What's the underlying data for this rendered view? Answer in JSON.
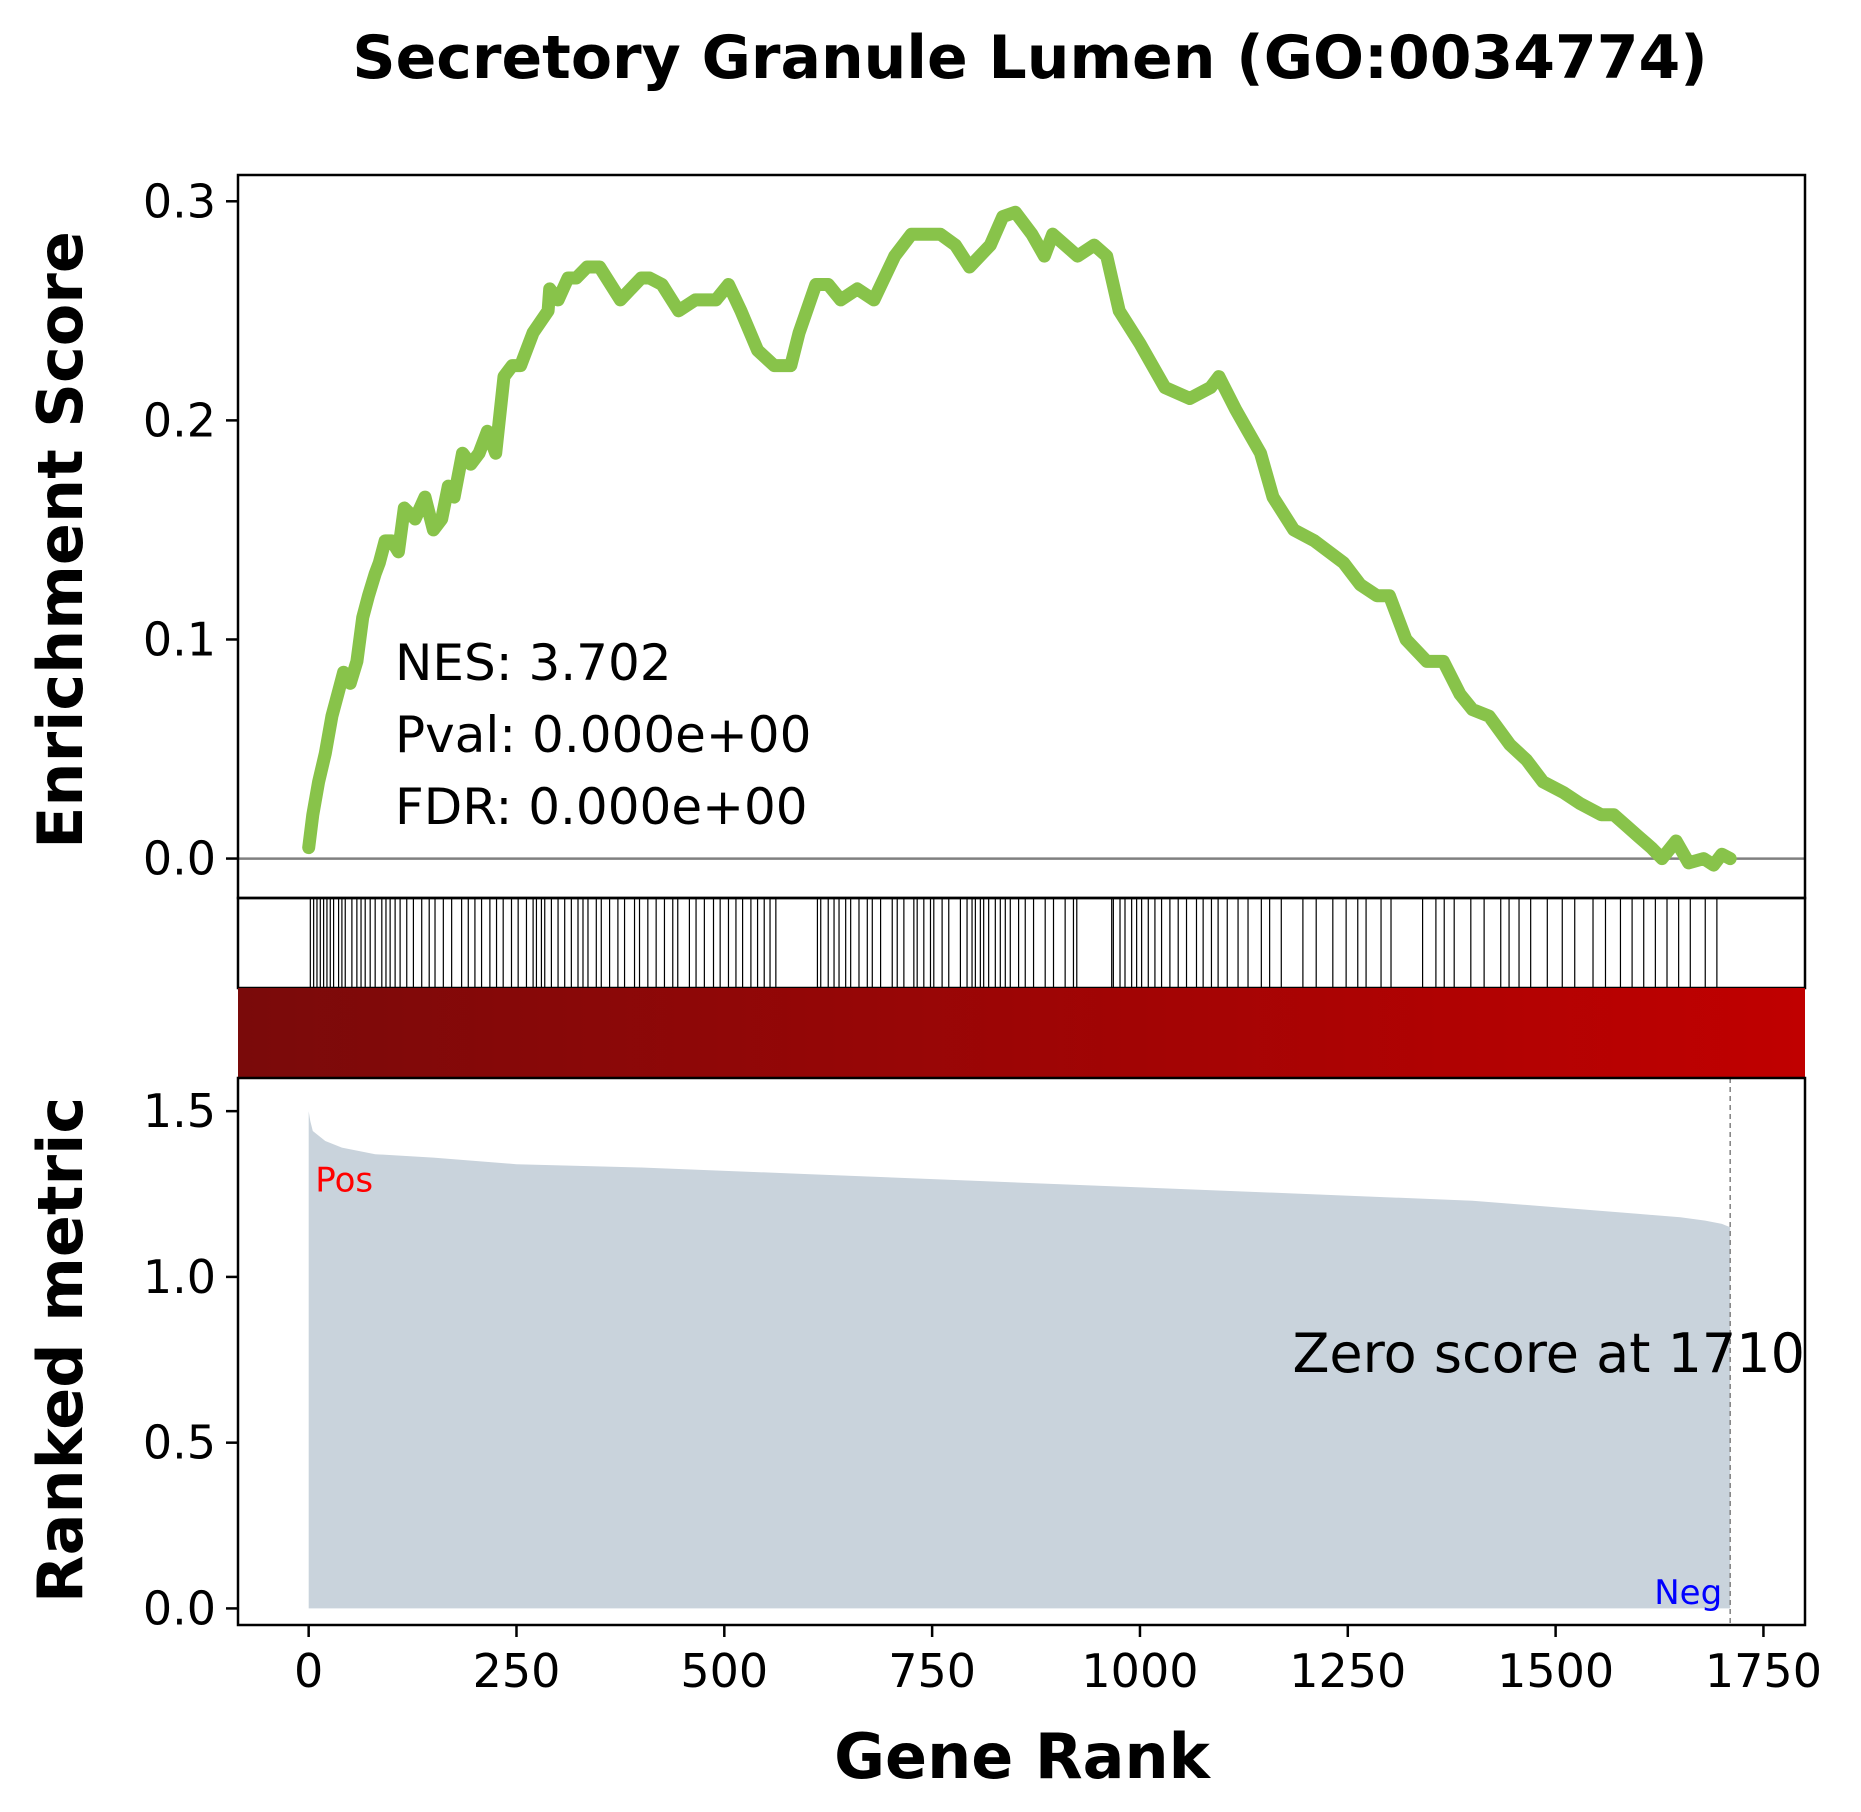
{
  "chart_data": {
    "type": "line",
    "title": "Secretory Granule Lumen (GO:0034774)",
    "xlabel": "Gene Rank",
    "xlim": [
      -85,
      1800
    ],
    "x_ticks": [
      {
        "value": 0,
        "label": "0"
      },
      {
        "value": 250,
        "label": "250"
      },
      {
        "value": 500,
        "label": "500"
      },
      {
        "value": 750,
        "label": "750"
      },
      {
        "value": 1000,
        "label": "1000"
      },
      {
        "value": 1250,
        "label": "1250"
      },
      {
        "value": 1500,
        "label": "1500"
      },
      {
        "value": 1750,
        "label": "1750"
      }
    ],
    "enrichment": {
      "ylabel": "Enrichment Score",
      "ylim": [
        -0.018,
        0.312
      ],
      "y_ticks": [
        {
          "value": 0.0,
          "label": "0.0"
        },
        {
          "value": 0.1,
          "label": "0.1"
        },
        {
          "value": 0.2,
          "label": "0.2"
        },
        {
          "value": 0.3,
          "label": "0.3"
        }
      ],
      "line_color": "#88c34a",
      "zero_line_color": "#808080",
      "rank": [
        0,
        5,
        12,
        20,
        28,
        35,
        42,
        50,
        58,
        65,
        72,
        80,
        85,
        92,
        100,
        108,
        115,
        128,
        140,
        150,
        160,
        168,
        175,
        185,
        195,
        205,
        215,
        225,
        235,
        245,
        255,
        270,
        288,
        290,
        300,
        312,
        322,
        335,
        350,
        375,
        400,
        410,
        425,
        445,
        465,
        490,
        505,
        520,
        540,
        560,
        580,
        590,
        610,
        625,
        640,
        660,
        680,
        705,
        725,
        745,
        760,
        778,
        795,
        820,
        835,
        850,
        870,
        885,
        895,
        910,
        925,
        945,
        960,
        975,
        1000,
        1030,
        1060,
        1085,
        1095,
        1115,
        1130,
        1145,
        1160,
        1185,
        1210,
        1245,
        1265,
        1285,
        1300,
        1320,
        1345,
        1365,
        1385,
        1400,
        1420,
        1445,
        1465,
        1485,
        1510,
        1530,
        1555,
        1570,
        1585,
        1600,
        1615,
        1628,
        1645,
        1660,
        1678,
        1690,
        1700,
        1710
      ],
      "es": [
        0.005,
        0.02,
        0.035,
        0.048,
        0.065,
        0.075,
        0.085,
        0.08,
        0.09,
        0.11,
        0.12,
        0.13,
        0.135,
        0.145,
        0.145,
        0.14,
        0.16,
        0.155,
        0.165,
        0.15,
        0.155,
        0.17,
        0.165,
        0.185,
        0.18,
        0.185,
        0.195,
        0.185,
        0.22,
        0.225,
        0.225,
        0.24,
        0.25,
        0.26,
        0.255,
        0.265,
        0.265,
        0.27,
        0.27,
        0.255,
        0.265,
        0.265,
        0.262,
        0.25,
        0.255,
        0.255,
        0.262,
        0.25,
        0.232,
        0.225,
        0.225,
        0.24,
        0.262,
        0.262,
        0.255,
        0.26,
        0.255,
        0.275,
        0.285,
        0.285,
        0.285,
        0.28,
        0.27,
        0.28,
        0.293,
        0.295,
        0.285,
        0.275,
        0.285,
        0.28,
        0.275,
        0.28,
        0.275,
        0.25,
        0.235,
        0.215,
        0.21,
        0.215,
        0.22,
        0.205,
        0.195,
        0.185,
        0.165,
        0.15,
        0.145,
        0.135,
        0.125,
        0.12,
        0.12,
        0.1,
        0.09,
        0.09,
        0.075,
        0.068,
        0.065,
        0.052,
        0.045,
        0.035,
        0.03,
        0.025,
        0.02,
        0.02,
        0.015,
        0.01,
        0.005,
        0.0,
        0.008,
        -0.002,
        0.0,
        -0.003,
        0.002,
        0.0
      ]
    },
    "hits": {
      "ranks": [
        2,
        6,
        10,
        14,
        18,
        22,
        26,
        30,
        36,
        40,
        44,
        52,
        58,
        63,
        68,
        74,
        80,
        88,
        93,
        98,
        104,
        110,
        118,
        126,
        136,
        145,
        152,
        162,
        172,
        184,
        192,
        200,
        208,
        218,
        226,
        234,
        244,
        252,
        262,
        270,
        274,
        280,
        284,
        292,
        300,
        308,
        316,
        324,
        330,
        336,
        346,
        352,
        362,
        372,
        380,
        392,
        398,
        408,
        418,
        428,
        438,
        444,
        458,
        466,
        476,
        487,
        495,
        505,
        514,
        522,
        532,
        540,
        548,
        555,
        562,
        612,
        616,
        625,
        632,
        638,
        646,
        652,
        662,
        672,
        678,
        688,
        702,
        708,
        716,
        728,
        732,
        740,
        748,
        752,
        762,
        770,
        784,
        792,
        798,
        802,
        808,
        812,
        818,
        826,
        832,
        838,
        844,
        854,
        862,
        872,
        886,
        896,
        910,
        920,
        924,
        966,
        968,
        976,
        982,
        990,
        996,
        1002,
        1010,
        1018,
        1026,
        1036,
        1046,
        1056,
        1068,
        1076,
        1086,
        1094,
        1105,
        1118,
        1130,
        1146,
        1156,
        1170,
        1196,
        1212,
        1232,
        1248,
        1262,
        1272,
        1290,
        1302,
        1340,
        1356,
        1366,
        1378,
        1398,
        1414,
        1434,
        1444,
        1456,
        1470,
        1490,
        1508,
        1523,
        1545,
        1560,
        1578,
        1592,
        1606,
        1620,
        1634,
        1648,
        1662,
        1680,
        1694
      ],
      "line_color": "#000000"
    },
    "color_bar": {
      "start_color": "#7a0a0a",
      "end_color": "#c00000"
    },
    "ranked_metric": {
      "ylabel": "Ranked metric",
      "ylim": [
        -0.05,
        1.6
      ],
      "y_ticks": [
        {
          "value": 0.0,
          "label": "0.0"
        },
        {
          "value": 0.5,
          "label": "0.5"
        },
        {
          "value": 1.0,
          "label": "1.0"
        },
        {
          "value": 1.5,
          "label": "1.5"
        }
      ],
      "fill_color": "#c9d3dc",
      "rank": [
        0,
        2,
        5,
        10,
        20,
        40,
        80,
        150,
        250,
        400,
        600,
        800,
        1000,
        1200,
        1400,
        1500,
        1600,
        1650,
        1680,
        1700,
        1710
      ],
      "metric": [
        1.5,
        1.47,
        1.44,
        1.43,
        1.41,
        1.39,
        1.37,
        1.36,
        1.34,
        1.33,
        1.31,
        1.29,
        1.27,
        1.25,
        1.23,
        1.21,
        1.19,
        1.18,
        1.17,
        1.16,
        1.15
      ],
      "zero_score_rank": 1710,
      "zero_line_color": "#808080"
    },
    "annotations": {
      "nes": "NES: 3.702",
      "pval": "Pval: 0.000e+00",
      "fdr": "FDR: 0.000e+00",
      "zero_score": "Zero score at 1710",
      "pos": "Pos",
      "pos_color": "#ff0000",
      "neg": "Neg",
      "neg_color": "#0000ff"
    }
  }
}
